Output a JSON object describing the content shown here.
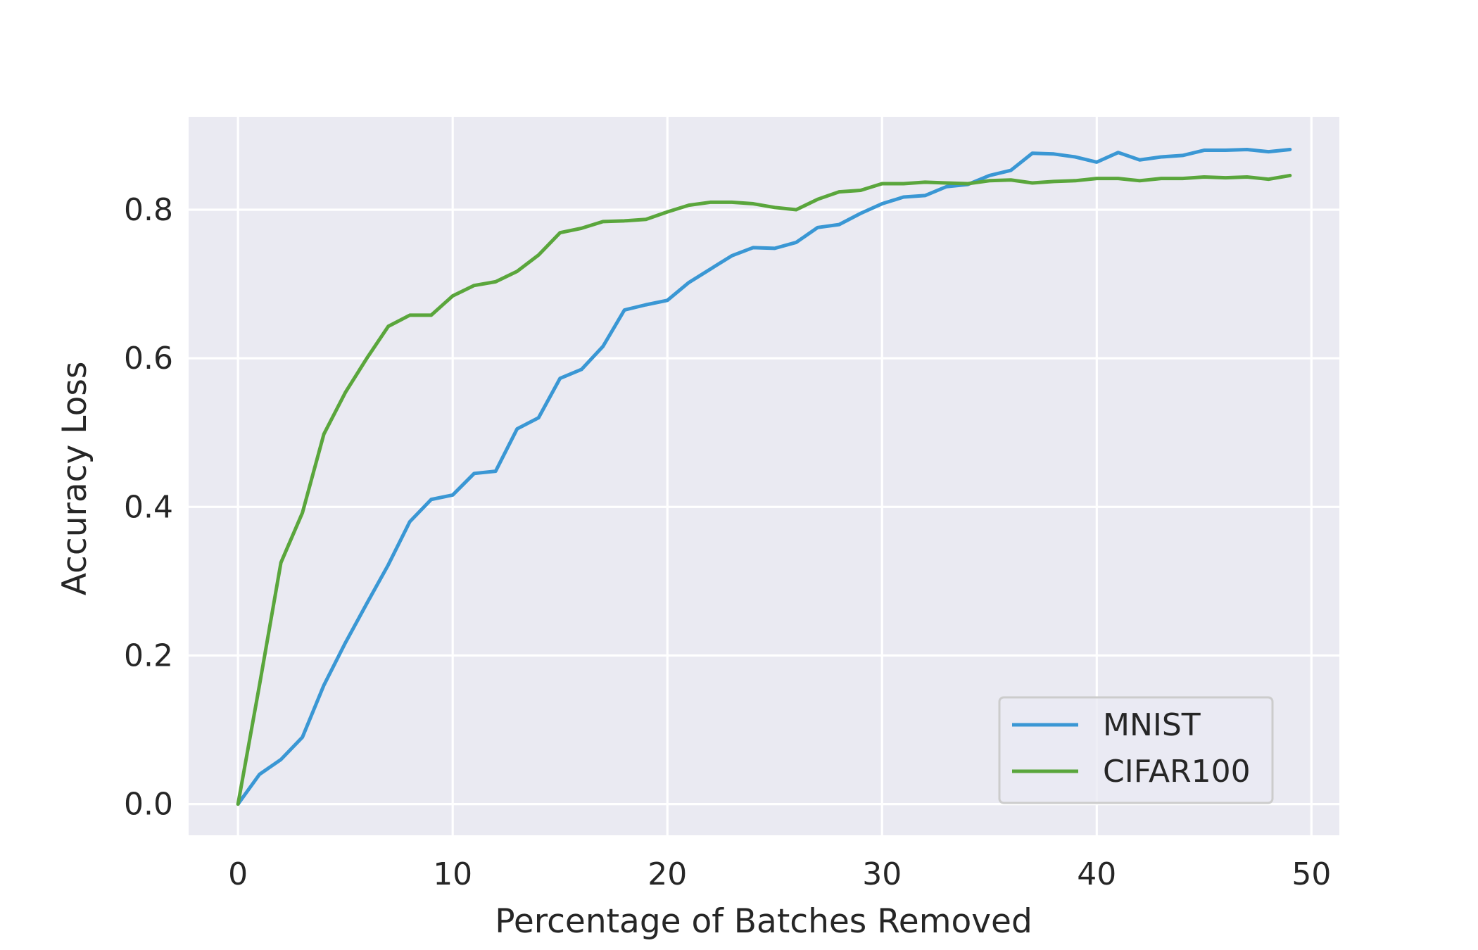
{
  "chart_data": {
    "type": "line",
    "title": "",
    "xlabel": "Percentage of Batches Removed",
    "ylabel": "Accuracy Loss",
    "xlim": [
      -2.3,
      51.3
    ],
    "ylim": [
      -0.042,
      0.925
    ],
    "x_ticks": [
      0,
      10,
      20,
      30,
      40,
      50
    ],
    "y_ticks": [
      0.0,
      0.2,
      0.4,
      0.6,
      0.8
    ],
    "x_tick_labels": [
      "0",
      "10",
      "20",
      "30",
      "40",
      "50"
    ],
    "y_tick_labels": [
      "0.0",
      "0.2",
      "0.4",
      "0.6",
      "0.8"
    ],
    "grid": true,
    "background": "#eaeaf2",
    "legend_position": "lower-right",
    "x": [
      0,
      1,
      2,
      3,
      4,
      5,
      6,
      7,
      8,
      9,
      10,
      11,
      12,
      13,
      14,
      15,
      16,
      17,
      18,
      19,
      20,
      21,
      22,
      23,
      24,
      25,
      26,
      27,
      28,
      29,
      30,
      31,
      32,
      33,
      34,
      35,
      36,
      37,
      38,
      39,
      40,
      41,
      42,
      43,
      44,
      45,
      46,
      47,
      48,
      49
    ],
    "series": [
      {
        "name": "MNIST",
        "color": "#3a97d4",
        "values": [
          0.0,
          0.04,
          0.06,
          0.09,
          0.16,
          0.217,
          0.27,
          0.322,
          0.38,
          0.41,
          0.416,
          0.445,
          0.448,
          0.505,
          0.52,
          0.573,
          0.585,
          0.616,
          0.665,
          0.672,
          0.678,
          0.702,
          0.72,
          0.738,
          0.749,
          0.748,
          0.756,
          0.776,
          0.78,
          0.795,
          0.808,
          0.817,
          0.819,
          0.831,
          0.834,
          0.846,
          0.853,
          0.876,
          0.875,
          0.871,
          0.864,
          0.877,
          0.867,
          0.871,
          0.873,
          0.88,
          0.88,
          0.881,
          0.878,
          0.881
        ]
      },
      {
        "name": "CIFAR100",
        "color": "#5aa63c",
        "values": [
          0.0,
          0.16,
          0.325,
          0.392,
          0.498,
          0.554,
          0.6,
          0.643,
          0.658,
          0.658,
          0.684,
          0.698,
          0.703,
          0.717,
          0.739,
          0.769,
          0.775,
          0.784,
          0.785,
          0.787,
          0.797,
          0.806,
          0.81,
          0.81,
          0.808,
          0.803,
          0.8,
          0.814,
          0.824,
          0.826,
          0.835,
          0.835,
          0.837,
          0.836,
          0.835,
          0.839,
          0.84,
          0.836,
          0.838,
          0.839,
          0.842,
          0.842,
          0.839,
          0.842,
          0.842,
          0.844,
          0.843,
          0.844,
          0.841,
          0.846
        ]
      }
    ]
  }
}
